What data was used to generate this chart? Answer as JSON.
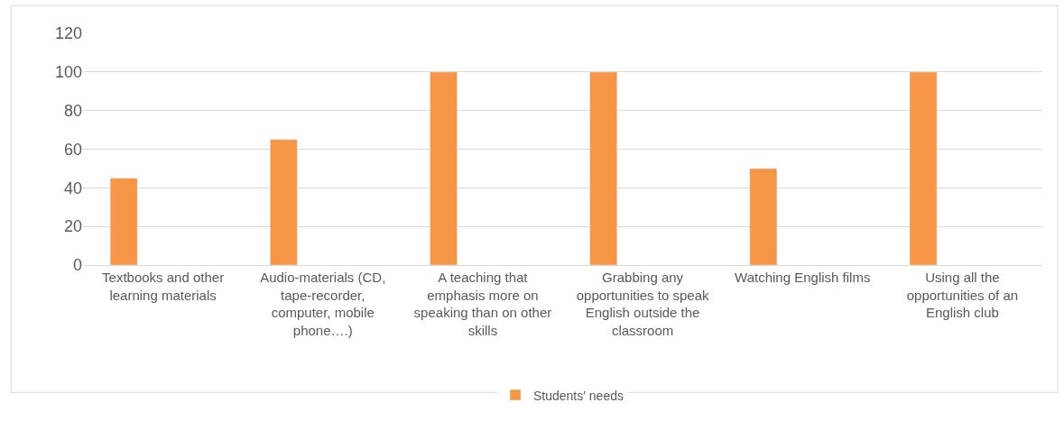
{
  "chart_data": {
    "type": "bar",
    "categories": [
      "Textbooks and other learning materials",
      "Audio-materials (CD, tape-recorder, computer, mobile phone….)",
      "A teaching that emphasis more on speaking than on other skills",
      "Grabbing any opportunities to speak English outside the classroom",
      "Watching English films",
      "Using all the opportunities of an English club"
    ],
    "series": [
      {
        "name": "Students' needs",
        "color": "#f79646",
        "values": [
          45,
          65,
          100,
          100,
          50,
          100
        ]
      }
    ],
    "ylim": [
      0,
      120
    ],
    "yticks": [
      0,
      20,
      40,
      60,
      80,
      100,
      120
    ],
    "grid": "y",
    "legend": "bottom"
  }
}
